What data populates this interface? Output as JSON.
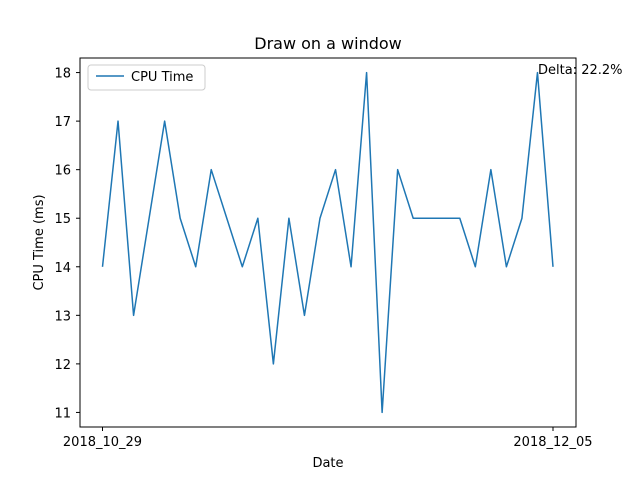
{
  "chart_data": {
    "type": "line",
    "title": "Draw on a window",
    "xlabel": "Date",
    "ylabel": "CPU Time (ms)",
    "x_tick_labels": [
      "2018_10_29",
      "2018_12_05"
    ],
    "y_ticks": [
      11,
      12,
      13,
      14,
      15,
      16,
      17,
      18
    ],
    "ylim": [
      10.7,
      18.3
    ],
    "grid": false,
    "legend_position": "top-left",
    "annotation": "Delta: 22.2%",
    "series": [
      {
        "name": "CPU Time",
        "color": "#1f77b4",
        "values": [
          14,
          17,
          13,
          15,
          17,
          15,
          14,
          16,
          15,
          14,
          15,
          12,
          15,
          13,
          15,
          16,
          14,
          18,
          11,
          16,
          15,
          15,
          15,
          15,
          14,
          16,
          14,
          15,
          18,
          14
        ]
      }
    ]
  }
}
